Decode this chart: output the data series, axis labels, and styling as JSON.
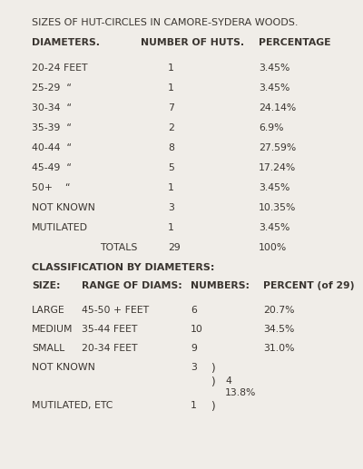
{
  "title": "SIZES OF HUT-CIRCLES IN CAMORE-SYDERA WOODS.",
  "bg_color": "#f0ede8",
  "text_color": "#3a3530",
  "section1_header": [
    "DIAMETERS.",
    "NUMBER OF HUTS.",
    "PERCENTAGE"
  ],
  "row_labels": [
    "20-24 FEET",
    "25-29  “",
    "30-34  “",
    "35-39  “",
    "40-44  “",
    "45-49  “",
    "50+    “",
    "NOT KNOWN",
    "MUTILATED"
  ],
  "row_nums": [
    "1",
    "1",
    "7",
    "2",
    "8",
    "5",
    "1",
    "3",
    "1"
  ],
  "row_pcts": [
    "3.45%",
    "3.45%",
    "24.14%",
    "6.9%",
    "27.59%",
    "17.24%",
    "3.45%",
    "10.35%",
    "3.45%"
  ],
  "totals_label": "TOTALS",
  "totals_num": "29",
  "totals_pct": "100%",
  "section2_title": "CLASSIFICATION BY DIAMETERS:",
  "section2_header": [
    "SIZE:",
    "RANGE OF DIAMS:",
    "NUMBERS:",
    "PERCENT (of 29)"
  ],
  "section2_rows": [
    [
      "LARGE",
      "45-50 + FEET",
      "6",
      "20.7%"
    ],
    [
      "MEDIUM",
      "35-44 FEET",
      "10",
      "34.5%"
    ],
    [
      "SMALL",
      "20-34 FEET",
      "9",
      "31.0%"
    ]
  ],
  "grp_not_known": "3",
  "grp_brace_num": "4",
  "grp_brace_pct": "13.8%",
  "grp_mutilated": "1",
  "fs": 7.8,
  "fs_title": 8.0,
  "fs_bold": 7.8
}
